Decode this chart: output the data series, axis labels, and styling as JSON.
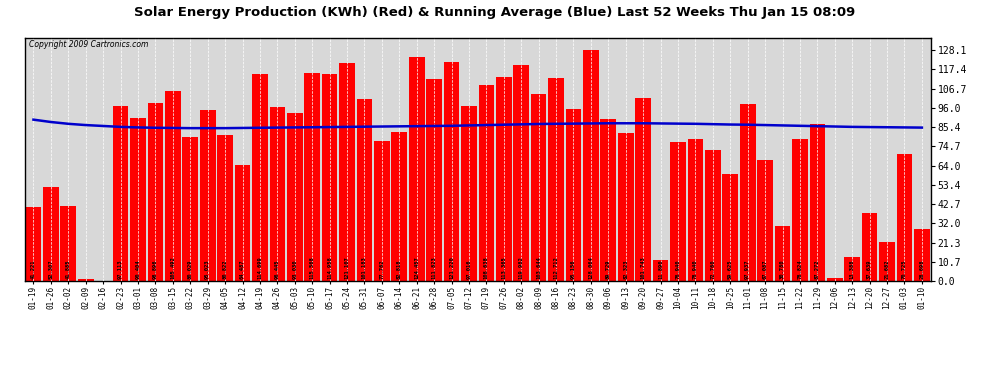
{
  "title": "Solar Energy Production (KWh) (Red) & Running Average (Blue) Last 52 Weeks Thu Jan 15 08:09",
  "copyright": "Copyright 2009 Cartronics.com",
  "bar_color": "#ff0000",
  "avg_color": "#0000cc",
  "background_color": "#ffffff",
  "plot_bg_color": "#d8d8d8",
  "grid_color": "#ffffff",
  "yticks_right": [
    0.0,
    10.7,
    21.3,
    32.0,
    42.7,
    53.4,
    64.0,
    74.7,
    85.4,
    96.0,
    106.7,
    117.4,
    128.1
  ],
  "ymax": 135,
  "ymin": 0,
  "categories": [
    "01-19",
    "01-26",
    "02-02",
    "02-09",
    "02-16",
    "02-23",
    "03-01",
    "03-08",
    "03-15",
    "03-22",
    "03-29",
    "04-05",
    "04-12",
    "04-19",
    "04-26",
    "05-03",
    "05-10",
    "05-17",
    "05-24",
    "05-31",
    "06-07",
    "06-14",
    "06-21",
    "06-28",
    "07-05",
    "07-12",
    "07-19",
    "07-26",
    "08-02",
    "08-09",
    "08-16",
    "08-23",
    "08-30",
    "09-06",
    "09-13",
    "09-20",
    "09-27",
    "10-04",
    "10-11",
    "10-18",
    "10-25",
    "11-01",
    "11-08",
    "11-15",
    "11-22",
    "11-29",
    "12-06",
    "12-13",
    "12-20",
    "12-27",
    "01-03",
    "01-10"
  ],
  "values": [
    41.221,
    52.307,
    41.885,
    1.413,
    0.0,
    97.113,
    90.404,
    98.896,
    105.492,
    80.029,
    95.023,
    80.822,
    64.487,
    114.699,
    96.445,
    93.03,
    115.568,
    114.958,
    121.107,
    101.183,
    77.762,
    82.818,
    124.457,
    111.823,
    121.22,
    97.016,
    108.638,
    113.365,
    119.982,
    103.644,
    112.712,
    95.156,
    128.064,
    89.729,
    82.323,
    101.743,
    11.89,
    76.94,
    78.94,
    72.76,
    59.625,
    97.937,
    67.087,
    30.78,
    78.824,
    87.272,
    1.65,
    13.388,
    37.639,
    21.682,
    70.725,
    28.698
  ],
  "running_avg": [
    89.5,
    88.2,
    87.2,
    86.5,
    86.0,
    85.5,
    85.2,
    85.0,
    84.9,
    84.8,
    84.8,
    84.8,
    84.9,
    85.0,
    85.1,
    85.2,
    85.3,
    85.4,
    85.5,
    85.6,
    85.7,
    85.8,
    85.9,
    86.0,
    86.1,
    86.3,
    86.5,
    86.7,
    86.9,
    87.1,
    87.2,
    87.3,
    87.4,
    87.5,
    87.5,
    87.5,
    87.4,
    87.3,
    87.2,
    87.0,
    86.8,
    86.7,
    86.5,
    86.3,
    86.1,
    85.9,
    85.7,
    85.5,
    85.4,
    85.3,
    85.2,
    85.1
  ]
}
